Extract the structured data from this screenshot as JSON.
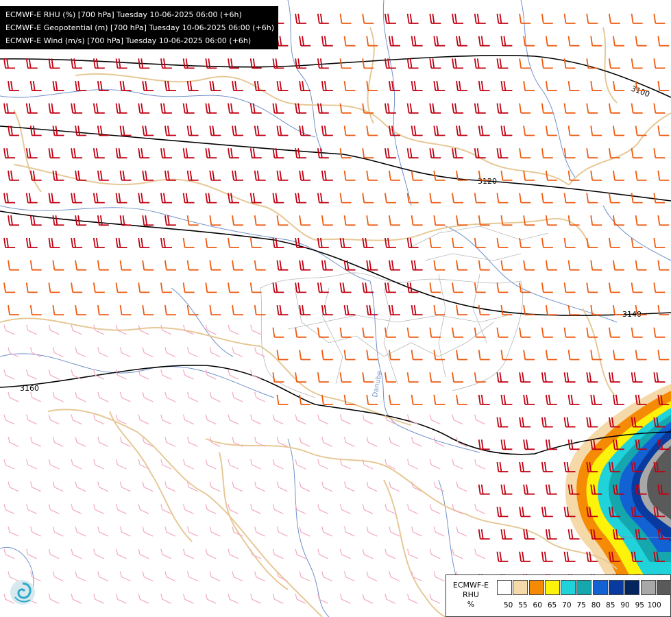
{
  "header": {
    "line1": "ECMWF-E RHU (%) [700 hPa] Tuesday 10-06-2025 06:00 (+6h)",
    "line2": "ECMWF-E Geopotential (m) [700 hPa] Tuesday 10-06-2025 06:00 (+6h)",
    "line3": "ECMWF-E Wind (m/s) [700 hPa] Tuesday 10-06-2025 06:00 (+6h)"
  },
  "contours": {
    "labels": [
      "3100",
      "3120",
      "3140",
      "3160"
    ]
  },
  "map_labels": {
    "river": "Danube"
  },
  "legend": {
    "line1": "ECMWF-E",
    "line2": "RHU",
    "unit": "%",
    "ticks": [
      "50",
      "55",
      "60",
      "65",
      "70",
      "75",
      "80",
      "85",
      "90",
      "95",
      "100"
    ],
    "colors": [
      "#ffffff",
      "#f5d9a8",
      "#f58a05",
      "#fcf20a",
      "#20d2da",
      "#15a6ae",
      "#1262d4",
      "#083aa0",
      "#04245e",
      "#a8a8a8",
      "#5a5a5a"
    ]
  },
  "colors": {
    "wind_strong": "#c00012",
    "wind_moderate": "#ee5a10",
    "wind_light": "#f2a8c0",
    "border": "#e6c896",
    "river": "#6f90c8",
    "contour": "#000000"
  },
  "icons": {
    "logo": "ecmwf-swirl-logo"
  }
}
